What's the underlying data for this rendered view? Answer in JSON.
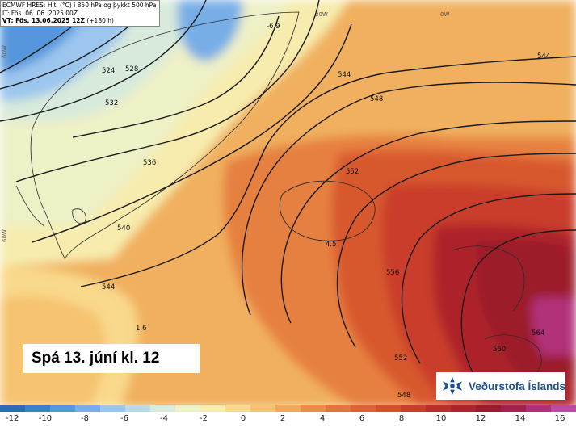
{
  "header": {
    "line1": "ECMWF HRES: Hiti (°C) í 850 hPa og þykkt 500 hPa",
    "line2": "IT: Fös. 06. 06. 2025 00Z",
    "line3": "VT: Fös. 13.06.2025 12Z",
    "line3_suffix": " (+180 h)"
  },
  "caption": "Spá 13. júní kl. 12",
  "logo_text": "Veðurstofa Íslands",
  "contour_labels": [
    "524",
    "528",
    "532",
    "536",
    "540",
    "544",
    "544",
    "548",
    "552",
    "556",
    "560",
    "564",
    "552",
    "548",
    "544"
  ],
  "spot_values": [
    "-6.9",
    "4.5",
    "1.6"
  ],
  "longitude_labels": [
    "20W",
    "0W",
    "60W",
    "60W"
  ],
  "colorbar": {
    "ticks": [
      "-12",
      "-10",
      "-8",
      "-6",
      "-4",
      "-2",
      "0",
      "2",
      "4",
      "6",
      "8",
      "10",
      "12",
      "14",
      "16"
    ],
    "colors": [
      "#2e6ab8",
      "#3e7fcc",
      "#5596dc",
      "#78aee6",
      "#9cc6ee",
      "#bcdbe8",
      "#d8eadb",
      "#eef0c6",
      "#f7ecae",
      "#f9d98c",
      "#f6c370",
      "#f1a857",
      "#ea8c44",
      "#e27638",
      "#dc6232",
      "#d4502c",
      "#c93e2a",
      "#bc2e2c",
      "#ad222c",
      "#9c1a2c",
      "#a6204e",
      "#b2307a",
      "#c048a4"
    ]
  }
}
